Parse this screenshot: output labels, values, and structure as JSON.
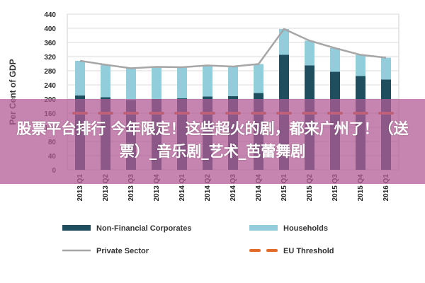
{
  "chart_data": {
    "type": "bar",
    "stacked": true,
    "categories": [
      "2013 Q1",
      "2013 Q2",
      "2013 Q3",
      "2013 Q4",
      "2014 Q1",
      "2014 Q2",
      "2014 Q3",
      "2014 Q4",
      "2015 Q1",
      "2015 Q2",
      "2015 Q3",
      "2015 Q4",
      "2016 Q1"
    ],
    "ylabel": "Per Cent of GDP",
    "ylim": [
      0,
      440
    ],
    "yticks": [
      0,
      40,
      80,
      120,
      160,
      200,
      240,
      280,
      320,
      360,
      400,
      440
    ],
    "grid": true,
    "legend_position": "bottom",
    "series": [
      {
        "name": "Non-Financial Corporates",
        "kind": "bar",
        "color": "#1f4e5f",
        "values": [
          210,
          205,
          197,
          200,
          202,
          207,
          208,
          217,
          325,
          295,
          277,
          265,
          255
        ]
      },
      {
        "name": "Households",
        "kind": "bar",
        "color": "#92cddc",
        "values": [
          98,
          92,
          90,
          91,
          88,
          88,
          84,
          82,
          73,
          70,
          67,
          60,
          62
        ]
      },
      {
        "name": "Private Sector",
        "kind": "line",
        "color": "#a6a6a6",
        "values": [
          308,
          297,
          287,
          291,
          290,
          295,
          292,
          299,
          398,
          365,
          344,
          325,
          317
        ]
      },
      {
        "name": "EU Threshold",
        "kind": "dash",
        "color": "#e36c2a",
        "values": [
          160,
          160,
          160,
          160,
          160,
          160,
          160,
          160,
          160,
          160,
          160,
          160,
          160
        ]
      }
    ]
  },
  "overlay": {
    "title": "股票平台排行 今年限定！这些超火的剧，都来广州了！（送票）_音乐剧_艺术_芭蕾舞剧"
  }
}
